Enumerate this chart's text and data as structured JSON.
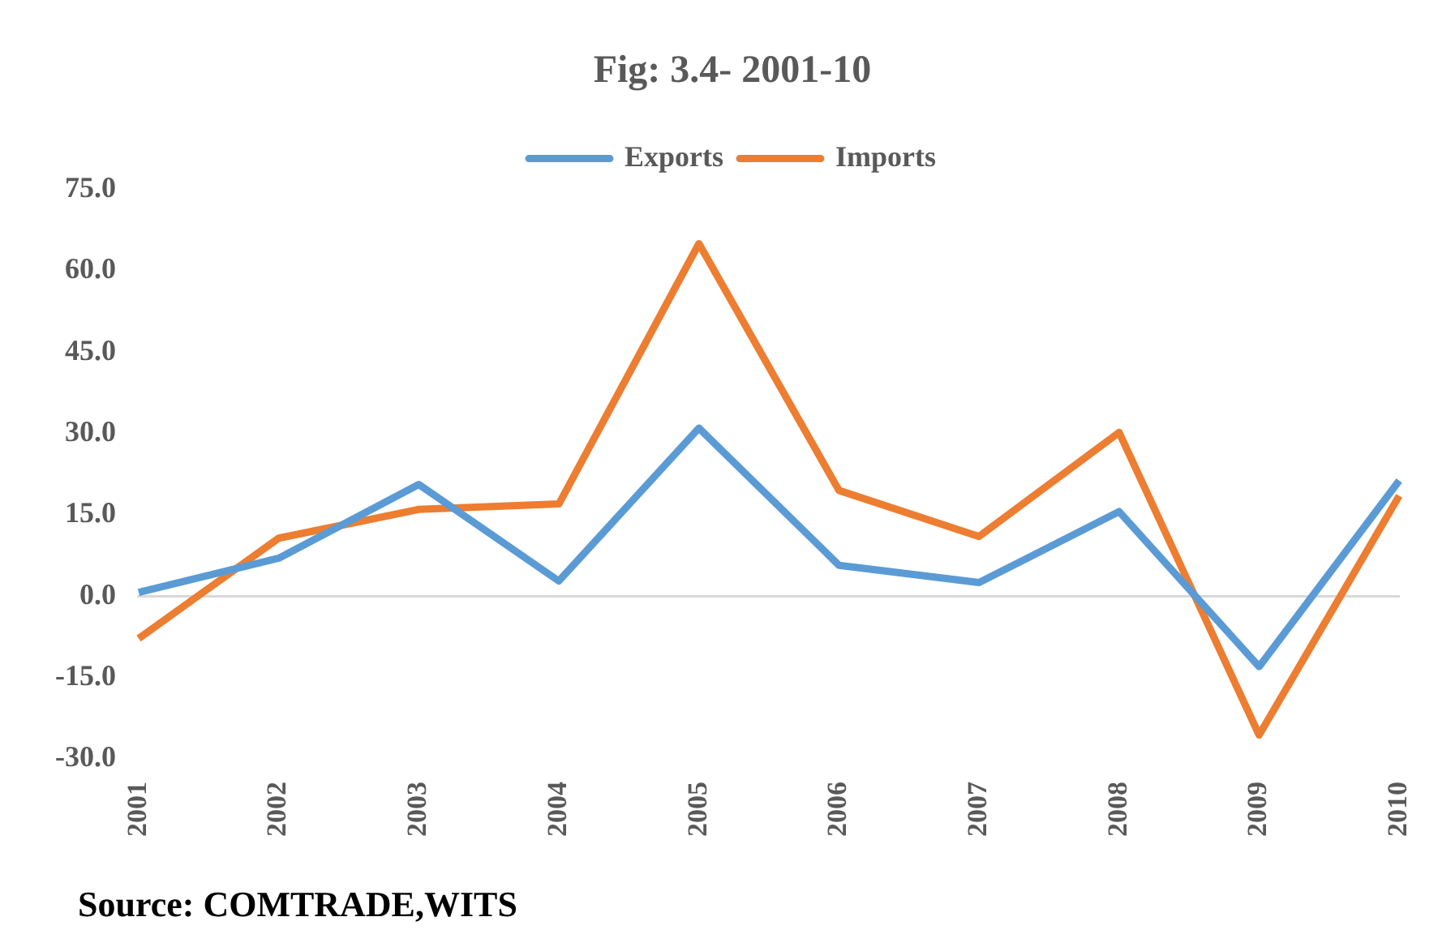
{
  "chart_data": {
    "type": "line",
    "title": "Fig: 3.4- 2001-10",
    "categories": [
      "2001",
      "2002",
      "2003",
      "2004",
      "2005",
      "2006",
      "2007",
      "2008",
      "2009",
      "2010"
    ],
    "series": [
      {
        "name": "Exports",
        "color": "#5b9bd5",
        "values": [
          0.7,
          7,
          20.6,
          2.8,
          31,
          5.7,
          2.5,
          15.6,
          -13,
          21.3
        ]
      },
      {
        "name": "Imports",
        "color": "#ed7d31",
        "values": [
          -7.8,
          10.7,
          16,
          17,
          65,
          19.5,
          11,
          30.2,
          -25.6,
          18.5
        ]
      }
    ],
    "ylim": [
      -30,
      75
    ],
    "yticks": [
      {
        "value": -30,
        "label": "-30.0"
      },
      {
        "value": -15,
        "label": "-15.0"
      },
      {
        "value": 0,
        "label": "0.0"
      },
      {
        "value": 15,
        "label": "15.0"
      },
      {
        "value": 30,
        "label": "30.0"
      },
      {
        "value": 45,
        "label": "45.0"
      },
      {
        "value": 60,
        "label": "60.0"
      },
      {
        "value": 75,
        "label": "75.0"
      }
    ],
    "legend": "top",
    "marker": "none",
    "annotations": [
      "Source: COMTRADE,WITS"
    ]
  }
}
